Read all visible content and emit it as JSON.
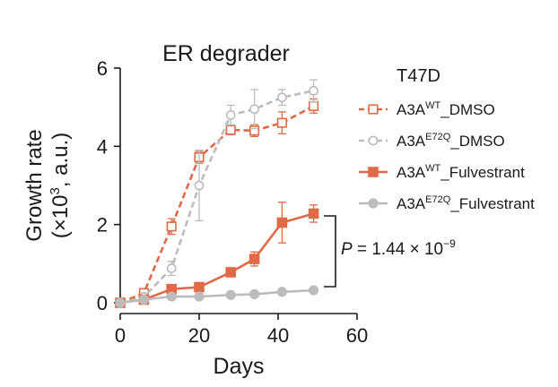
{
  "chart_data": {
    "type": "line",
    "title": "ER degrader",
    "xlabel": "Days",
    "ylabel_line1": "Growth rate",
    "ylabel_line2_pre": "(×10",
    "ylabel_line2_sup": "3",
    "ylabel_line2_post": ", a.u.)",
    "xlim": [
      0,
      60
    ],
    "ylim": [
      0,
      6
    ],
    "xticks": [
      0,
      20,
      40,
      60
    ],
    "yticks": [
      0,
      2,
      4,
      6
    ],
    "legend_title": "T47D",
    "annotation": {
      "prefix": "P",
      "text": " = 1.44 × 10",
      "exponent": "−9"
    },
    "series": [
      {
        "name": "A3A_WT_DMSO",
        "label_base": "A3A",
        "label_sup": "WT",
        "label_suffix": "_DMSO",
        "color": "#e06a47",
        "dashed": true,
        "marker": "square-open",
        "x": [
          0,
          6,
          13,
          20,
          28,
          34,
          41,
          49
        ],
        "y": [
          0.0,
          0.25,
          1.95,
          3.72,
          4.42,
          4.4,
          4.6,
          5.03
        ],
        "err": [
          0.05,
          0.1,
          0.2,
          0.15,
          0.12,
          0.15,
          0.28,
          0.18
        ]
      },
      {
        "name": "A3A_E72Q_DMSO",
        "label_base": "A3A",
        "label_sup": "E72Q",
        "label_suffix": "_DMSO",
        "color": "#bcbcbc",
        "dashed": true,
        "marker": "circle-open",
        "x": [
          0,
          6,
          13,
          20,
          28,
          34,
          41,
          49
        ],
        "y": [
          0.0,
          0.15,
          0.88,
          3.0,
          4.8,
          4.95,
          5.25,
          5.42
        ],
        "err": [
          0.05,
          0.08,
          0.18,
          0.9,
          0.25,
          0.5,
          0.2,
          0.28
        ]
      },
      {
        "name": "A3A_WT_Fulvestrant",
        "label_base": "A3A",
        "label_sup": "WT",
        "label_suffix": "_Fulvestrant",
        "color": "#e06a47",
        "dashed": false,
        "marker": "square-filled",
        "x": [
          0,
          6,
          13,
          20,
          28,
          34,
          41,
          49
        ],
        "y": [
          0.0,
          0.08,
          0.35,
          0.4,
          0.78,
          1.12,
          2.05,
          2.28
        ],
        "err": [
          0.03,
          0.05,
          0.05,
          0.06,
          0.06,
          0.18,
          0.52,
          0.22
        ]
      },
      {
        "name": "A3A_E72Q_Fulvestrant",
        "label_base": "A3A",
        "label_sup": "E72Q",
        "label_suffix": "_Fulvestrant",
        "color": "#bcbcbc",
        "dashed": false,
        "marker": "circle-filled",
        "x": [
          0,
          6,
          13,
          20,
          28,
          34,
          41,
          49
        ],
        "y": [
          0.0,
          0.08,
          0.16,
          0.16,
          0.2,
          0.22,
          0.28,
          0.32
        ],
        "err": [
          0.02,
          0.03,
          0.03,
          0.03,
          0.03,
          0.03,
          0.03,
          0.04
        ]
      }
    ]
  }
}
